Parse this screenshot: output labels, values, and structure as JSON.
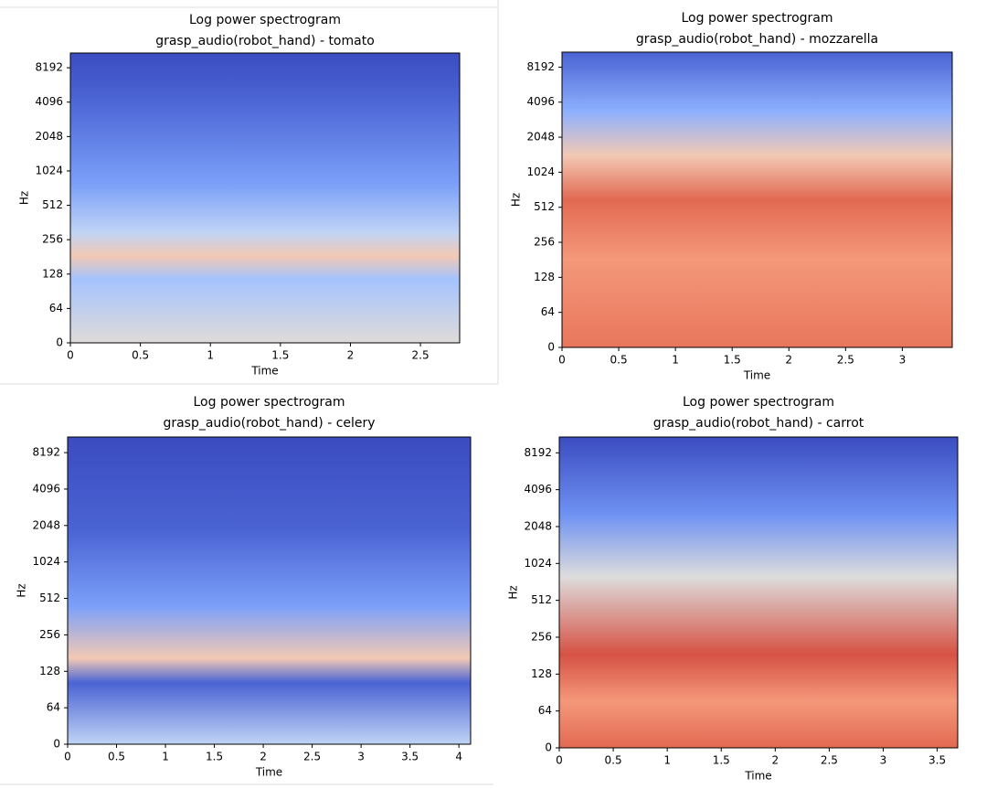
{
  "chart_data": [
    {
      "type": "spectrogram",
      "title": "Log power spectrogram",
      "subtitle": "grasp_audio(robot_hand) - tomato",
      "xlabel": "Time",
      "ylabel": "Hz",
      "xlim": [
        0,
        2.78
      ],
      "xticks": [
        0,
        0.5,
        1,
        1.5,
        2,
        2.5
      ],
      "ylim": [
        0,
        11025
      ],
      "yticks": [
        0,
        64,
        128,
        256,
        512,
        1024,
        2048,
        4096,
        8192
      ],
      "yscale": "log"
    },
    {
      "type": "spectrogram",
      "title": "Log power spectrogram",
      "subtitle": "grasp_audio(robot_hand) - mozzarella",
      "xlabel": "Time",
      "ylabel": "Hz",
      "xlim": [
        0,
        3.44
      ],
      "xticks": [
        0,
        0.5,
        1,
        1.5,
        2,
        2.5,
        3
      ],
      "ylim": [
        0,
        11025
      ],
      "yticks": [
        0,
        64,
        128,
        256,
        512,
        1024,
        2048,
        4096,
        8192
      ],
      "yscale": "log"
    },
    {
      "type": "spectrogram",
      "title": "Log power spectrogram",
      "subtitle": "grasp_audio(robot_hand) - celery",
      "xlabel": "Time",
      "ylabel": "Hz",
      "xlim": [
        0,
        4.12
      ],
      "xticks": [
        0,
        0.5,
        1,
        1.5,
        2,
        2.5,
        3,
        3.5,
        4
      ],
      "ylim": [
        0,
        11025
      ],
      "yticks": [
        0,
        64,
        128,
        256,
        512,
        1024,
        2048,
        4096,
        8192
      ],
      "yscale": "log"
    },
    {
      "type": "spectrogram",
      "title": "Log power spectrogram",
      "subtitle": "grasp_audio(robot_hand) - carrot",
      "xlabel": "Time",
      "ylabel": "Hz",
      "xlim": [
        0,
        3.69
      ],
      "xticks": [
        0,
        0.5,
        1,
        1.5,
        2,
        2.5,
        3,
        3.5
      ],
      "ylim": [
        0,
        11025
      ],
      "yticks": [
        0,
        64,
        128,
        256,
        512,
        1024,
        2048,
        4096,
        8192
      ],
      "yscale": "log"
    }
  ]
}
